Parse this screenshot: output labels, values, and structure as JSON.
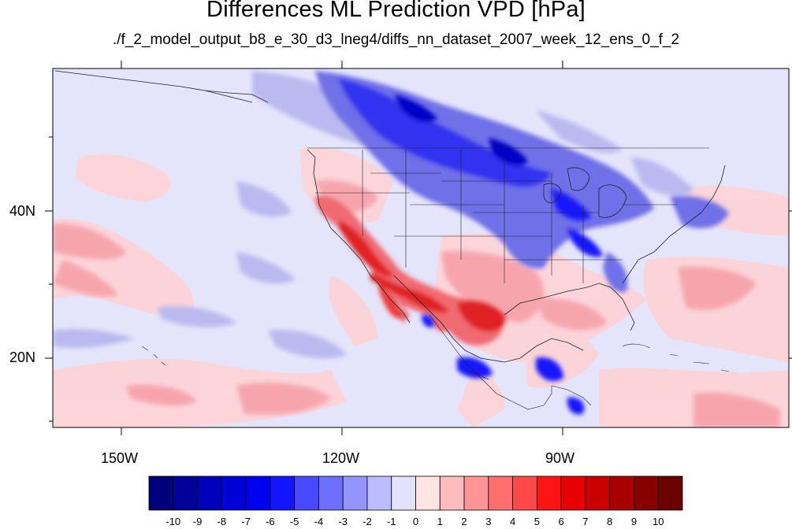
{
  "figure": {
    "title": "Differences ML Prediction VPD [hPa]",
    "subtitle": "./f_2_model_output_b8_e_30_d3_lneg4/diffs_nn_dataset_2007_week_12_ens_0_f_2"
  },
  "axes": {
    "lon_labels": [
      "150W",
      "120W",
      "90W"
    ],
    "lat_labels": [
      "40N",
      "20N"
    ]
  },
  "colorbar": {
    "labels": [
      "-10",
      "-9",
      "-8",
      "-7",
      "-6",
      "-5",
      "-4",
      "-3",
      "-2",
      "-1",
      "0",
      "1",
      "2",
      "3",
      "4",
      "5",
      "6",
      "7",
      "8",
      "9",
      "10"
    ],
    "colors": [
      "#00007a",
      "#00009a",
      "#0000bb",
      "#0000d8",
      "#0000f0",
      "#1414ff",
      "#4848ff",
      "#6e6eff",
      "#9494ff",
      "#bcbcff",
      "#e2e2ff",
      "#ffe4e4",
      "#ffbcbc",
      "#ff9494",
      "#ff6e6e",
      "#ff4848",
      "#ff1414",
      "#e80000",
      "#c80000",
      "#a80000",
      "#880000",
      "#6a0000"
    ]
  },
  "map": {
    "background_color": "#e4e4fa"
  }
}
